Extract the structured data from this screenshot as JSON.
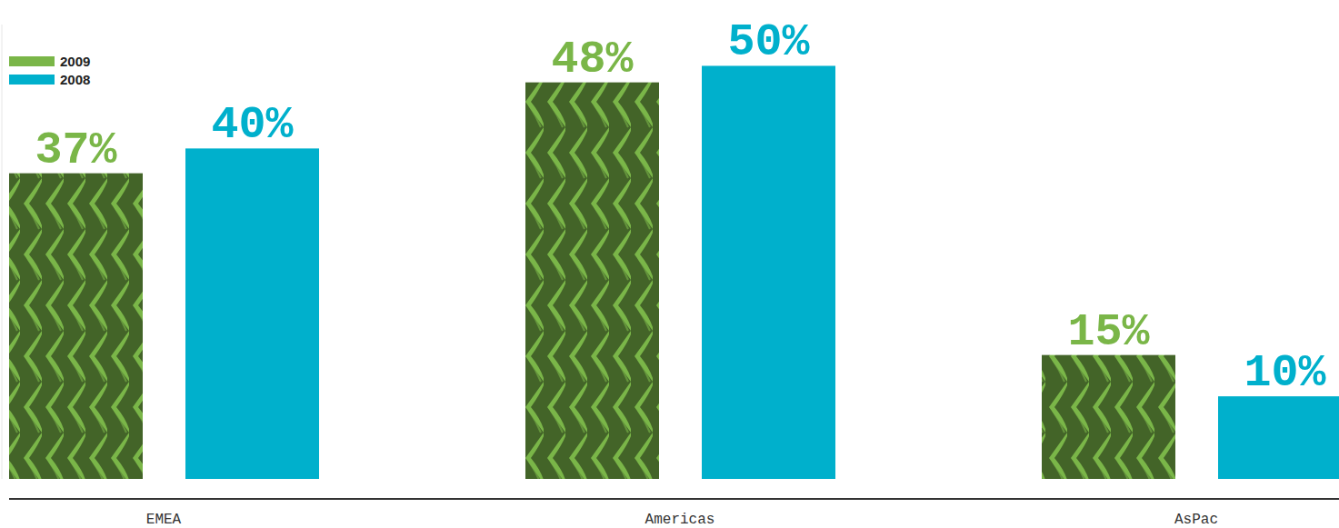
{
  "chart_data": {
    "type": "bar",
    "categories": [
      "EMEA",
      "Americas",
      "AsPac"
    ],
    "series": [
      {
        "name": "2009",
        "color": "#7ab648",
        "values": [
          37,
          48,
          15
        ],
        "value_labels": [
          "37%",
          "48%",
          "15%"
        ]
      },
      {
        "name": "2008",
        "color": "#00b0cc",
        "values": [
          40,
          50,
          10
        ],
        "value_labels": [
          "40%",
          "50%",
          "10%"
        ]
      }
    ],
    "ylim": [
      0,
      55
    ],
    "tick_labels": false,
    "data_labels": true,
    "legend": "top-left"
  }
}
